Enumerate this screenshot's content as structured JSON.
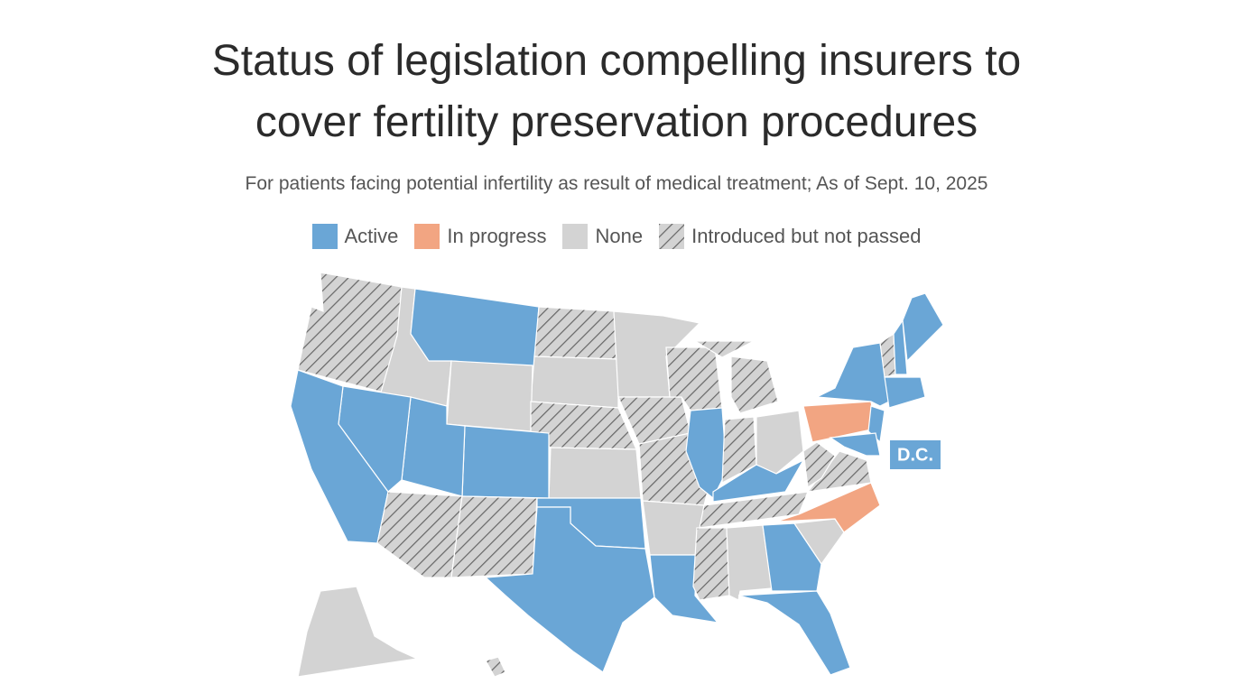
{
  "header": {
    "title": "Status of legislation compelling insurers to cover fertility preservation procedures",
    "subtitle": "For patients facing potential infertility as result of medical treatment; As of Sept. 10, 2025"
  },
  "legend": [
    {
      "label": "Active",
      "color": "#6aa6d6"
    },
    {
      "label": "In progress",
      "color": "#f2a582"
    },
    {
      "label": "None",
      "color": "#d3d3d3"
    },
    {
      "label": "Introduced but not passed",
      "color": "#d3d3d3"
    }
  ],
  "map": {
    "dc_label": "D.C."
  }
}
